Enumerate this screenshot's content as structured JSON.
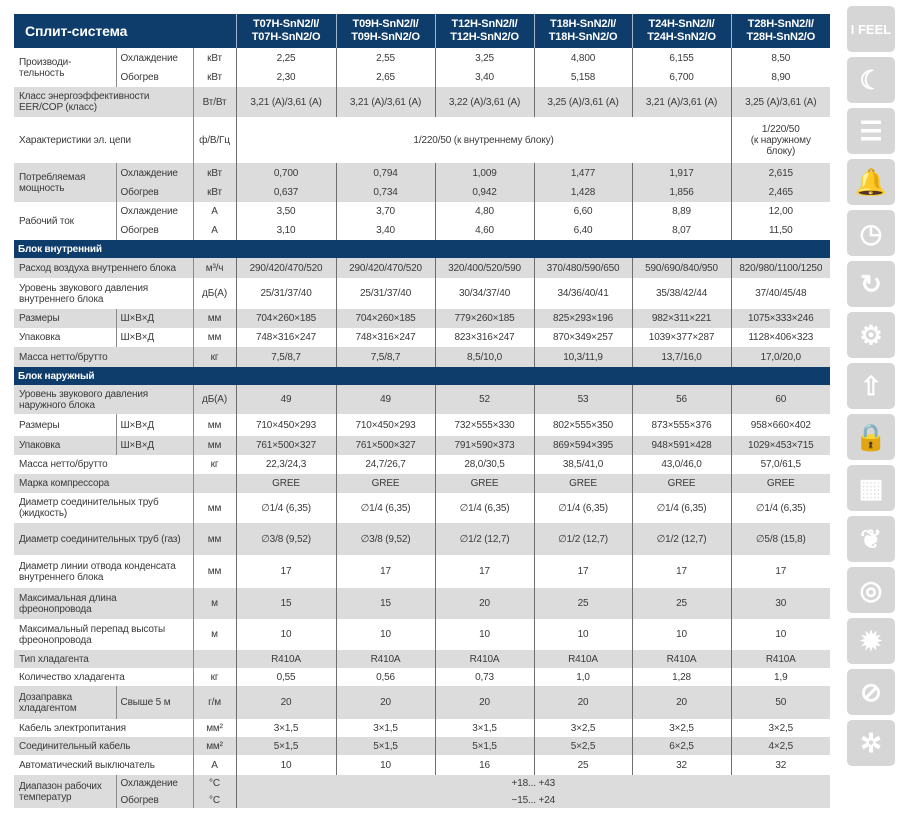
{
  "table": {
    "title": "Сплит-система",
    "models": [
      "T07H-SnN2/I/\nT07H-SnN2/O",
      "T09H-SnN2/I/\nT09H-SnN2/O",
      "T12H-SnN2/I/\nT12H-SnN2/O",
      "T18H-SnN2/I/\nT18H-SnN2/O",
      "T24H-SnN2/I/\nT24H-SnN2/O",
      "T28H-SnN2/I/\nT28H-SnN2/O"
    ],
    "rows": [
      {
        "label": "Производи-тельность",
        "bg": "w",
        "sub": [
          {
            "name": "Охлаждение",
            "unit": "кВт",
            "values": [
              "2,25",
              "2,55",
              "3,25",
              "4,800",
              "6,155",
              "8,50"
            ]
          },
          {
            "name": "Обогрев",
            "unit": "кВт",
            "values": [
              "2,30",
              "2,65",
              "3,40",
              "5,158",
              "6,700",
              "8,90"
            ]
          }
        ]
      },
      {
        "label": "Класс энергоэффективности EER/COP (класс)",
        "bg": "g",
        "unit": "Вт/Вт",
        "values": [
          "3,21 (A)/3,61 (A)",
          "3,21 (A)/3,61 (A)",
          "3,22 (A)/3,61 (A)",
          "3,25 (A)/3,61 (A)",
          "3,21 (A)/3,61 (A)",
          "3,25 (A)/3,61 (A)"
        ]
      },
      {
        "label": "Характеристики эл. цепи",
        "bg": "w",
        "unit": "ф/В/Гц",
        "spans": [
          {
            "text": "1/220/50 (к внутреннему блоку)",
            "cols": 5
          },
          {
            "text": "1/220/50\n(к наружному\nблоку)",
            "cols": 1
          }
        ]
      },
      {
        "label": "Потребляемая мощность",
        "bg": "g",
        "sub": [
          {
            "name": "Охлаждение",
            "unit": "кВт",
            "values": [
              "0,700",
              "0,794",
              "1,009",
              "1,477",
              "1,917",
              "2,615"
            ]
          },
          {
            "name": "Обогрев",
            "unit": "кВт",
            "values": [
              "0,637",
              "0,734",
              "0,942",
              "1,428",
              "1,856",
              "2,465"
            ]
          }
        ]
      },
      {
        "label": "Рабочий ток",
        "bg": "w",
        "sub": [
          {
            "name": "Охлаждение",
            "unit": "А",
            "values": [
              "3,50",
              "3,70",
              "4,80",
              "6,60",
              "8,89",
              "12,00"
            ]
          },
          {
            "name": "Обогрев",
            "unit": "А",
            "values": [
              "3,10",
              "3,40",
              "4,60",
              "6,40",
              "8,07",
              "11,50"
            ]
          }
        ]
      },
      {
        "section": "Блок внутренний"
      },
      {
        "label": "Расход воздуха внутреннего блока",
        "bg": "g",
        "unit": "м³/ч",
        "values": [
          "290/420/470/520",
          "290/420/470/520",
          "320/400/520/590",
          "370/480/590/650",
          "590/690/840/950",
          "820/980/1100/1250"
        ]
      },
      {
        "label": "Уровень звукового давления внутреннего блока",
        "bg": "w",
        "unit": "дБ(А)",
        "values": [
          "25/31/37/40",
          "25/31/37/40",
          "30/34/37/40",
          "34/36/40/41",
          "35/38/42/44",
          "37/40/45/48"
        ]
      },
      {
        "label": "Размеры",
        "subname": "Ш×В×Д",
        "bg": "g",
        "unit": "мм",
        "values": [
          "704×260×185",
          "704×260×185",
          "779×260×185",
          "825×293×196",
          "982×311×221",
          "1075×333×246"
        ]
      },
      {
        "label": "Упаковка",
        "subname": "Ш×В×Д",
        "bg": "w",
        "unit": "мм",
        "values": [
          "748×316×247",
          "748×316×247",
          "823×316×247",
          "870×349×257",
          "1039×377×287",
          "1128×406×323"
        ]
      },
      {
        "label": "Масса нетто/брутто",
        "bg": "g",
        "unit": "кг",
        "values": [
          "7,5/8,7",
          "7,5/8,7",
          "8,5/10,0",
          "10,3/11,9",
          "13,7/16,0",
          "17,0/20,0"
        ]
      },
      {
        "section": "Блок наружный"
      },
      {
        "label": "Уровень звукового давления наружного блока",
        "bg": "g",
        "unit": "дБ(А)",
        "values": [
          "49",
          "49",
          "52",
          "53",
          "56",
          "60"
        ]
      },
      {
        "label": "Размеры",
        "subname": "Ш×В×Д",
        "bg": "w",
        "unit": "мм",
        "values": [
          "710×450×293",
          "710×450×293",
          "732×555×330",
          "802×555×350",
          "873×555×376",
          "958×660×402"
        ]
      },
      {
        "label": "Упаковка",
        "subname": "Ш×В×Д",
        "bg": "g",
        "unit": "мм",
        "values": [
          "761×500×327",
          "761×500×327",
          "791×590×373",
          "869×594×395",
          "948×591×428",
          "1029×453×715"
        ]
      },
      {
        "label": "Масса нетто/брутто",
        "bg": "w",
        "unit": "кг",
        "values": [
          "22,3/24,3",
          "24,7/26,7",
          "28,0/30,5",
          "38,5/41,0",
          "43,0/46,0",
          "57,0/61,5"
        ]
      },
      {
        "label": "Марка компрессора",
        "bg": "g",
        "unit": "",
        "values": [
          "GREE",
          "GREE",
          "GREE",
          "GREE",
          "GREE",
          "GREE"
        ]
      },
      {
        "label": "Диаметр соединительных труб (жидкость)",
        "bg": "w",
        "unit": "мм",
        "values": [
          "∅1/4 (6,35)",
          "∅1/4 (6,35)",
          "∅1/4 (6,35)",
          "∅1/4 (6,35)",
          "∅1/4 (6,35)",
          "∅1/4 (6,35)"
        ]
      },
      {
        "label": "Диаметр соединительных труб (газ)",
        "bg": "g",
        "unit": "мм",
        "values": [
          "∅3/8 (9,52)",
          "∅3/8 (9,52)",
          "∅1/2 (12,7)",
          "∅1/2 (12,7)",
          "∅1/2 (12,7)",
          "∅5/8 (15,8)"
        ]
      },
      {
        "label": "Диаметр линии отвода конденсата внутреннего блока",
        "bg": "w",
        "unit": "мм",
        "values": [
          "17",
          "17",
          "17",
          "17",
          "17",
          "17"
        ]
      },
      {
        "label": "Максимальная длина фреонопровода",
        "bg": "g",
        "unit": "м",
        "values": [
          "15",
          "15",
          "20",
          "25",
          "25",
          "30"
        ]
      },
      {
        "label": "Максимальный перепад высоты фреонопровода",
        "bg": "w",
        "unit": "м",
        "values": [
          "10",
          "10",
          "10",
          "10",
          "10",
          "10"
        ]
      },
      {
        "label": "Тип хладагента",
        "bg": "g",
        "unit": "",
        "values": [
          "R410A",
          "R410A",
          "R410A",
          "R410A",
          "R410A",
          "R410A"
        ]
      },
      {
        "label": "Количество хладагента",
        "bg": "w",
        "unit": "кг",
        "values": [
          "0,55",
          "0,56",
          "0,73",
          "1,0",
          "1,28",
          "1,9"
        ]
      },
      {
        "label": "Дозаправка хладагентом",
        "subname": "Свыше 5 м",
        "bg": "g",
        "unit": "г/м",
        "values": [
          "20",
          "20",
          "20",
          "20",
          "20",
          "50"
        ]
      },
      {
        "label": "Кабель электропитания",
        "bg": "w",
        "unit": "мм²",
        "values": [
          "3×1,5",
          "3×1,5",
          "3×1,5",
          "3×2,5",
          "3×2,5",
          "3×2,5"
        ]
      },
      {
        "label": "Соединительный кабель",
        "bg": "g",
        "unit": "мм²",
        "values": [
          "5×1,5",
          "5×1,5",
          "5×1,5",
          "5×2,5",
          "6×2,5",
          "4×2,5"
        ]
      },
      {
        "label": "Автоматический выключатель",
        "bg": "w",
        "unit": "А",
        "values": [
          "10",
          "10",
          "16",
          "25",
          "32",
          "32"
        ]
      },
      {
        "label": "Диапазон рабочих температур",
        "bg": "g",
        "sub": [
          {
            "name": "Охлаждение",
            "unit": "°C",
            "spans": [
              {
                "text": "+18... +43",
                "cols": 6
              }
            ]
          },
          {
            "name": "Обогрев",
            "unit": "°C",
            "spans": [
              {
                "text": "−15... +24",
                "cols": 6
              }
            ]
          }
        ]
      }
    ]
  },
  "sidebar": {
    "icons": [
      {
        "name": "i-feel-icon",
        "glyph": "I FEEL"
      },
      {
        "name": "sleep-mode-icon",
        "glyph": "☾"
      },
      {
        "name": "blinds-icon",
        "glyph": "☰"
      },
      {
        "name": "sound-signal-icon",
        "glyph": "🔔"
      },
      {
        "name": "timer-icon",
        "glyph": "◷"
      },
      {
        "name": "restart-icon",
        "glyph": "↻"
      },
      {
        "name": "self-diagnosis-icon",
        "glyph": "⚙"
      },
      {
        "name": "heat-arrow-icon",
        "glyph": "⇧"
      },
      {
        "name": "child-lock-icon",
        "glyph": "🔒"
      },
      {
        "name": "display-icon",
        "glyph": "▦"
      },
      {
        "name": "air-flow-icon",
        "glyph": "❦"
      },
      {
        "name": "on-off-watch-icon",
        "glyph": "◎"
      },
      {
        "name": "8c-heating-icon",
        "glyph": "✹"
      },
      {
        "name": "anti-mold-icon",
        "glyph": "⊘"
      },
      {
        "name": "fan-clean-icon",
        "glyph": "✲"
      }
    ]
  }
}
